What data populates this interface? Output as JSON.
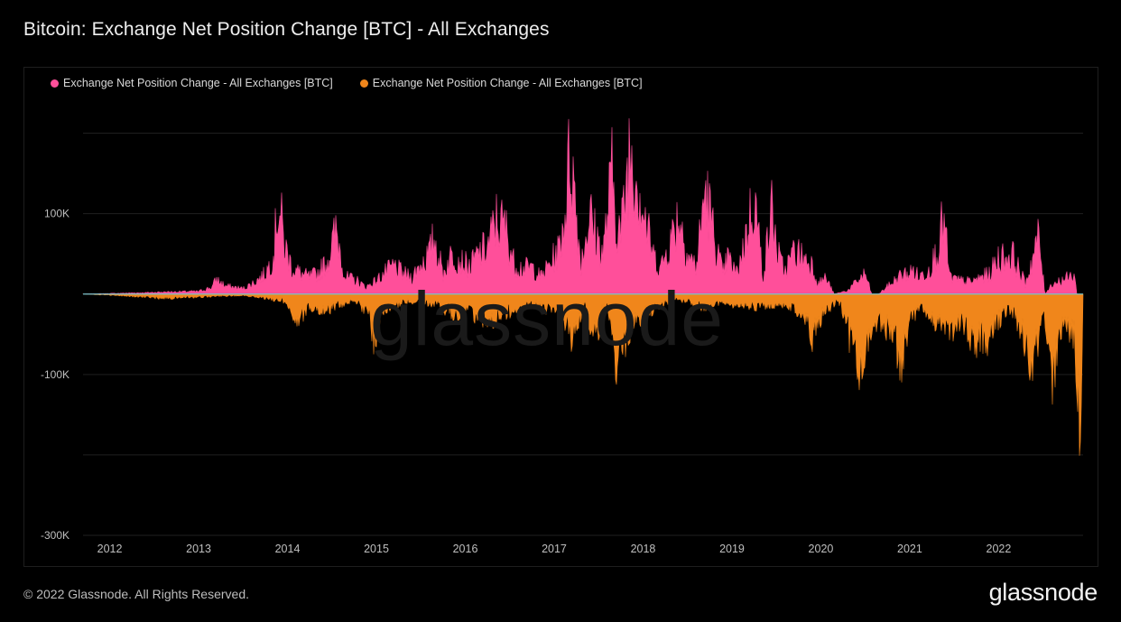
{
  "title": "Bitcoin: Exchange Net Position Change [BTC] - All Exchanges",
  "legend": [
    {
      "label": "Exchange Net Position Change - All Exchanges [BTC]",
      "color": "#ff4f9a"
    },
    {
      "label": "Exchange Net Position Change - All Exchanges [BTC]",
      "color": "#f0861b"
    }
  ],
  "watermark": "glassnode",
  "footer": "© 2022 Glassnode. All Rights Reserved.",
  "brand": "glassnode",
  "colors": {
    "positive": "#ff4f9a",
    "negative": "#f0861b",
    "baseline": "#5ad3f0",
    "grid": "#1f1f1f",
    "axis_text": "#bfbfbf"
  },
  "chart_data": {
    "type": "area",
    "title": "Bitcoin: Exchange Net Position Change [BTC] - All Exchanges",
    "xlabel": "",
    "ylabel": "",
    "xlim": [
      2011.7,
      2022.95
    ],
    "ylim": [
      -300000,
      250000
    ],
    "grid": true,
    "legend_position": "top-left",
    "y_ticks": [
      {
        "value": 100000,
        "label": "100K"
      },
      {
        "value": -100000,
        "label": "-100K"
      },
      {
        "value": -300000,
        "label": "-300K"
      }
    ],
    "y_gridlines": [
      200000,
      100000,
      0,
      -100000,
      -200000,
      -300000
    ],
    "x_ticks": [
      {
        "value": 2012,
        "label": "2012"
      },
      {
        "value": 2013,
        "label": "2013"
      },
      {
        "value": 2014,
        "label": "2014"
      },
      {
        "value": 2015,
        "label": "2015"
      },
      {
        "value": 2016,
        "label": "2016"
      },
      {
        "value": 2017,
        "label": "2017"
      },
      {
        "value": 2018,
        "label": "2018"
      },
      {
        "value": 2019,
        "label": "2019"
      },
      {
        "value": 2020,
        "label": "2020"
      },
      {
        "value": 2021,
        "label": "2021"
      },
      {
        "value": 2022,
        "label": "2022"
      }
    ],
    "series": [
      {
        "sign": "positive",
        "x": [
          2011.7,
          2012.4,
          2012.6,
          2013.0,
          2013.15,
          2013.2,
          2013.3,
          2013.5,
          2013.6,
          2013.75,
          2013.85,
          2013.88,
          2013.92,
          2013.97,
          2014.05,
          2014.15,
          2014.25,
          2014.35,
          2014.45,
          2014.55,
          2014.65,
          2014.78,
          2014.88,
          2015.0,
          2015.1,
          2015.2,
          2015.3,
          2015.4,
          2015.5,
          2015.6,
          2015.65,
          2015.75,
          2015.85,
          2015.95,
          2016.05,
          2016.15,
          2016.25,
          2016.35,
          2016.45,
          2016.55,
          2016.65,
          2016.75,
          2016.85,
          2016.95,
          2017.05,
          2017.12,
          2017.18,
          2017.23,
          2017.3,
          2017.4,
          2017.45,
          2017.55,
          2017.65,
          2017.7,
          2017.75,
          2017.8,
          2017.85,
          2017.9,
          2017.97,
          2018.05,
          2018.12,
          2018.2,
          2018.3,
          2018.4,
          2018.5,
          2018.6,
          2018.7,
          2018.8,
          2018.9,
          2018.95,
          2019.05,
          2019.15,
          2019.25,
          2019.35,
          2019.45,
          2019.5,
          2019.55,
          2019.6,
          2019.7,
          2019.8,
          2019.9,
          2019.97,
          2020.05,
          2020.15,
          2020.3,
          2020.5,
          2020.57,
          2020.65,
          2020.9,
          2020.97,
          2021.05,
          2021.1,
          2021.2,
          2021.3,
          2021.38,
          2021.4,
          2021.45,
          2021.55,
          2021.7,
          2021.8,
          2021.9,
          2022.0,
          2022.1,
          2022.15,
          2022.2,
          2022.3,
          2022.45,
          2022.52,
          2022.6,
          2022.8,
          2022.85,
          2022.88
        ],
        "y": [
          0,
          2000,
          3000,
          4000,
          10000,
          22000,
          12000,
          8000,
          15000,
          30000,
          60000,
          130000,
          120000,
          70000,
          40000,
          30000,
          25000,
          32000,
          50000,
          95000,
          25000,
          20000,
          10000,
          20000,
          32000,
          42000,
          30000,
          25000,
          45000,
          60000,
          85000,
          30000,
          60000,
          50000,
          40000,
          60000,
          70000,
          110000,
          100000,
          45000,
          38000,
          40000,
          25000,
          45000,
          65000,
          118000,
          220000,
          150000,
          45000,
          120000,
          95000,
          60000,
          180000,
          110000,
          90000,
          150000,
          225000,
          200000,
          150000,
          95000,
          55000,
          40000,
          75000,
          120000,
          60000,
          40000,
          160000,
          85000,
          28000,
          55000,
          30000,
          80000,
          150000,
          25000,
          130000,
          70000,
          45000,
          35000,
          65000,
          55000,
          45000,
          15000,
          25000,
          0,
          5000,
          30000,
          0,
          0,
          28000,
          30000,
          35000,
          25000,
          35000,
          60000,
          112000,
          90000,
          25000,
          20000,
          18000,
          25000,
          30000,
          55000,
          55000,
          60000,
          45000,
          15000,
          85000,
          0,
          15000,
          25000,
          30000,
          0
        ]
      },
      {
        "sign": "negative",
        "x": [
          2011.7,
          2012.4,
          2012.6,
          2013.0,
          2013.5,
          2013.97,
          2014.03,
          2014.1,
          2014.25,
          2014.4,
          2014.6,
          2014.75,
          2014.9,
          2014.95,
          2015.0,
          2015.05,
          2015.3,
          2015.7,
          2015.9,
          2016.0,
          2016.3,
          2016.6,
          2016.8,
          2016.95,
          2017.1,
          2017.2,
          2017.3,
          2017.35,
          2017.4,
          2017.5,
          2017.55,
          2017.6,
          2017.7,
          2017.9,
          2018.1,
          2018.2,
          2018.4,
          2018.7,
          2018.9,
          2019.0,
          2019.3,
          2019.6,
          2019.8,
          2019.9,
          2020.0,
          2020.1,
          2020.2,
          2020.28,
          2020.35,
          2020.45,
          2020.55,
          2020.7,
          2020.85,
          2020.9,
          2021.0,
          2021.1,
          2021.2,
          2021.4,
          2021.5,
          2021.6,
          2021.7,
          2021.9,
          2022.0,
          2022.1,
          2022.2,
          2022.25,
          2022.35,
          2022.4,
          2022.45,
          2022.5,
          2022.55,
          2022.6,
          2022.65,
          2022.7,
          2022.8,
          2022.85,
          2022.88,
          2022.92,
          2022.95
        ],
        "y": [
          0,
          -4000,
          -6000,
          -4000,
          -2000,
          -10000,
          -18000,
          -40000,
          -20000,
          -25000,
          -15000,
          -10000,
          -25000,
          -60000,
          -68000,
          -30000,
          -10000,
          -15000,
          -35000,
          -25000,
          -40000,
          -20000,
          -15000,
          -25000,
          -40000,
          -65000,
          -30000,
          -15000,
          -60000,
          -55000,
          -20000,
          -15000,
          -100000,
          -40000,
          -25000,
          -15000,
          -8000,
          -20000,
          -10000,
          -15000,
          -20000,
          -15000,
          -30000,
          -65000,
          -35000,
          -20000,
          -10000,
          -35000,
          -90000,
          -120000,
          -55000,
          -40000,
          -75000,
          -120000,
          -40000,
          -20000,
          -30000,
          -50000,
          -60000,
          -40000,
          -65000,
          -70000,
          -40000,
          -20000,
          -35000,
          -55000,
          -90000,
          -95000,
          -60000,
          -20000,
          -60000,
          -125000,
          -95000,
          -55000,
          -50000,
          -60000,
          -110000,
          -200000,
          0
        ]
      }
    ]
  }
}
